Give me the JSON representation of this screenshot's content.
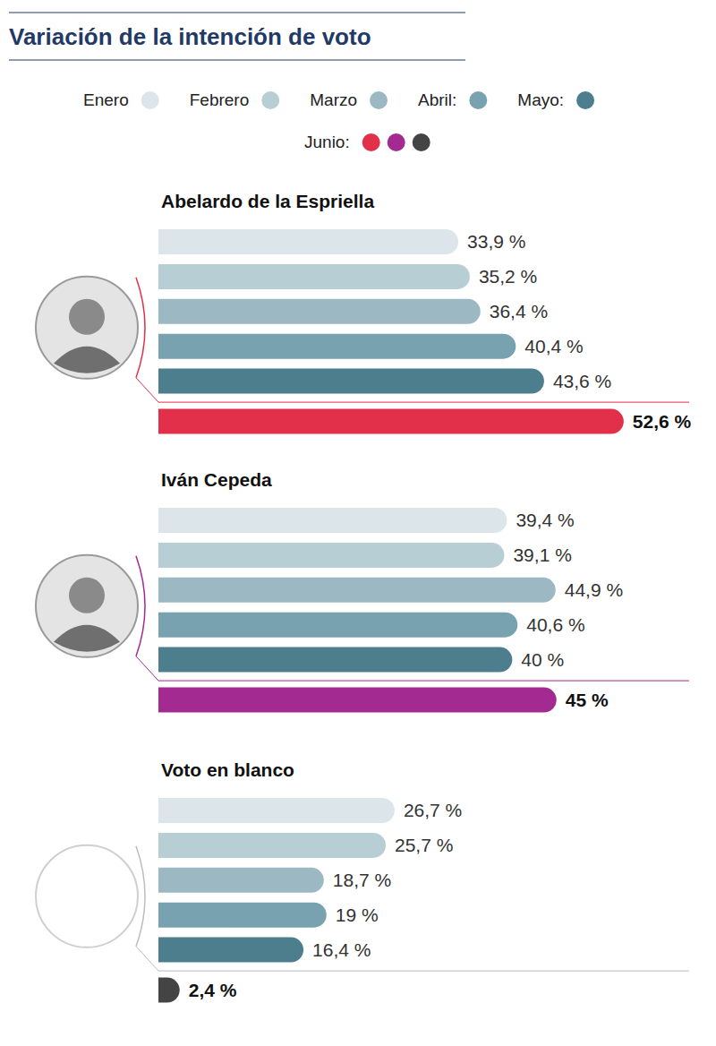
{
  "chart_data": {
    "type": "bar",
    "orientation": "horizontal",
    "title": "Variación de la intención de voto",
    "categories": [
      "Abelardo de la Espriella",
      "Iván Cepeda",
      "Voto en blanco"
    ],
    "series": [
      {
        "name": "Enero",
        "color": "#dce5e9",
        "values": [
          33.9,
          39.4,
          26.7
        ],
        "value_labels": [
          "33,9 %",
          "39,4 %",
          "26,7 %"
        ]
      },
      {
        "name": "Febrero",
        "color": "#b8ced5",
        "values": [
          35.2,
          39.1,
          25.7
        ],
        "value_labels": [
          "35,2 %",
          "39,1 %",
          "25,7 %"
        ]
      },
      {
        "name": "Marzo",
        "color": "#9cb9c3",
        "values": [
          36.4,
          44.9,
          18.7
        ],
        "value_labels": [
          "36,4 %",
          "44,9 %",
          "18,7 %"
        ]
      },
      {
        "name": "Abril:",
        "color": "#78a2af",
        "values": [
          40.4,
          40.6,
          19
        ],
        "value_labels": [
          "40,4 %",
          "40,6 %",
          "19 %"
        ]
      },
      {
        "name": "Mayo:",
        "color": "#4c7e8e",
        "values": [
          43.6,
          40,
          16.4
        ],
        "value_labels": [
          "43,6 %",
          "40 %",
          "16,4 %"
        ]
      },
      {
        "name": "Junio:",
        "colors": [
          "#e3304a",
          "#a32a90",
          "#444444"
        ],
        "values": [
          52.6,
          45,
          2.4
        ],
        "value_labels": [
          "52,6 %",
          "45 %",
          "2,4 %"
        ]
      }
    ],
    "xlim": [
      0,
      60
    ],
    "tick_labels": false,
    "grid": false,
    "data_labels": true,
    "legend": "top"
  }
}
